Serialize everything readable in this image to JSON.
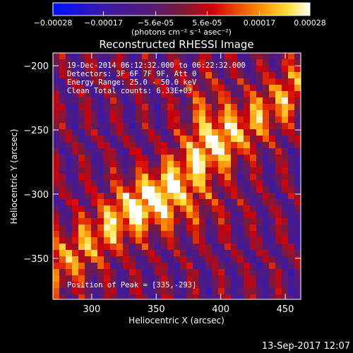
{
  "chart_data": {
    "type": "heatmap",
    "title": "Reconstructed RHESSI Image",
    "xlabel": "Heliocentric X (arcsec)",
    "ylabel": "Heliocentric Y (arcsec)",
    "xlim": [
      270,
      462
    ],
    "ylim": [
      -382,
      -190
    ],
    "x_ticks": [
      300,
      350,
      400,
      450
    ],
    "y_ticks": [
      -200,
      -250,
      -300,
      -350
    ],
    "colorbar": {
      "label_text": "(photons cm⁻² s⁻¹ asec⁻²)",
      "range": [
        -0.00028,
        0.00028
      ],
      "ticks": [
        "-0.00028",
        "-0.00017",
        "-5.6e-05",
        "5.6e-05",
        "0.00017",
        "0.00028"
      ]
    },
    "annotations": [
      "19-Dec-2014 06:12:32.000 to 06:22:32.000",
      "Detectors: 3F 6F 7F 9F, Att 0",
      "Energy Range: 25.0 - 50.0 keV",
      "Clean     Total counts: 6.33E+03"
    ],
    "peak_text": "Position of Peak = [335,-293]",
    "peak_position": [
      335,
      -293
    ]
  },
  "footer": {
    "timestamp": "13-Sep-2017 12:07"
  }
}
